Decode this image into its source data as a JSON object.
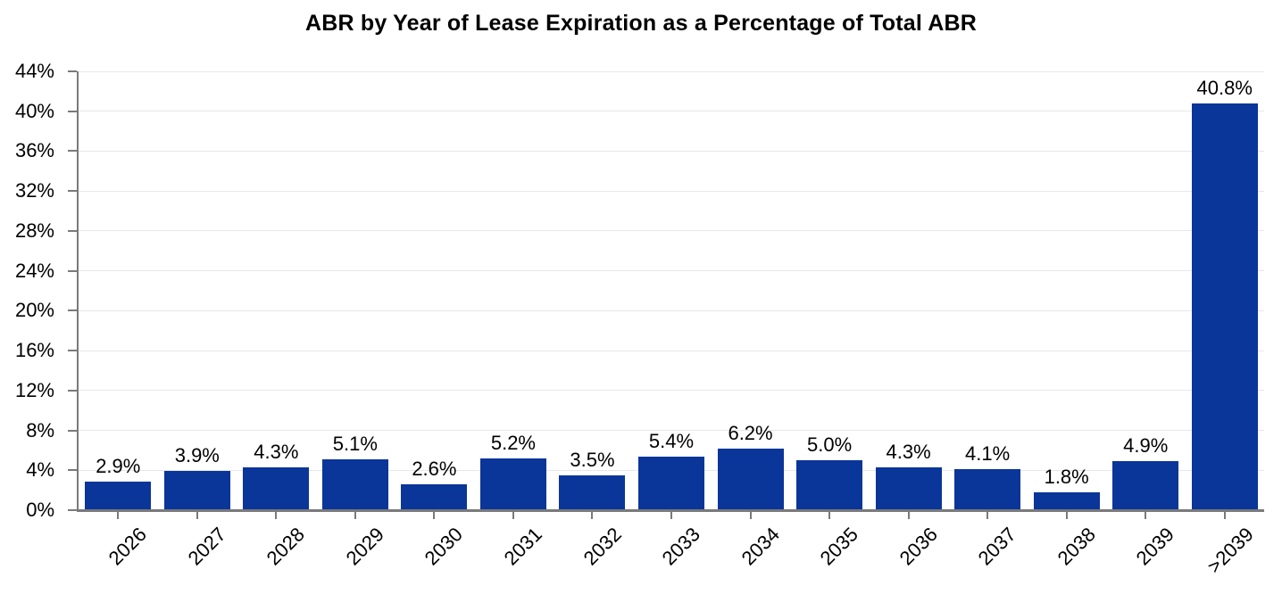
{
  "chart_data": {
    "type": "bar",
    "title": "ABR by Year of Lease Expiration as a Percentage of Total ABR",
    "categories": [
      "2026",
      "2027",
      "2028",
      "2029",
      "2030",
      "2031",
      "2032",
      "2033",
      "2034",
      "2035",
      "2036",
      "2037",
      "2038",
      "2039",
      ">2039"
    ],
    "values": [
      2.9,
      3.9,
      4.3,
      5.1,
      2.6,
      5.2,
      3.5,
      5.4,
      6.2,
      5.0,
      4.3,
      4.1,
      1.8,
      4.9,
      40.8
    ],
    "value_labels": [
      "2.9%",
      "3.9%",
      "4.3%",
      "5.1%",
      "2.6%",
      "5.2%",
      "3.5%",
      "5.4%",
      "6.2%",
      "5.0%",
      "4.3%",
      "4.1%",
      "1.8%",
      "4.9%",
      "40.8%"
    ],
    "xlabel": "",
    "ylabel": "",
    "ylim": [
      0,
      44
    ],
    "ytick_values": [
      0,
      4,
      8,
      12,
      16,
      20,
      24,
      28,
      32,
      36,
      40,
      44
    ],
    "ytick_labels": [
      "0%",
      "4%",
      "8%",
      "12%",
      "16%",
      "20%",
      "24%",
      "28%",
      "32%",
      "36%",
      "40%",
      "44%"
    ],
    "grid": "horizontal",
    "legend_position": "none",
    "x_label_rotation_deg": 45,
    "colors": {
      "bar": "#0A3599",
      "grid": "#E7E7E7",
      "axis": "#7A7A7A",
      "text": "#000000",
      "background": "#FFFFFF"
    }
  }
}
